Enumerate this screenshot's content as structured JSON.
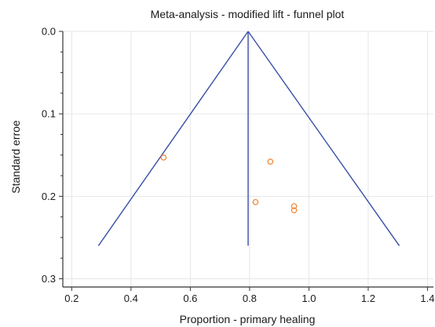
{
  "chart_data": {
    "type": "scatter",
    "title": "Meta-analysis - modified lift - funnel plot",
    "xlabel": "Proportion - primary healing",
    "ylabel": "Standard erroe",
    "xlim": [
      0.17,
      1.42
    ],
    "ylim": [
      0.0,
      0.31
    ],
    "y_inverted": true,
    "grid": true,
    "x_ticks": [
      {
        "value": 0.2,
        "label": "0.2"
      },
      {
        "value": 0.4,
        "label": "0.4"
      },
      {
        "value": 0.6,
        "label": "0.6"
      },
      {
        "value": 0.8,
        "label": "0.8"
      },
      {
        "value": 1.0,
        "label": "1.0"
      },
      {
        "value": 1.2,
        "label": "1.2"
      },
      {
        "value": 1.4,
        "label": "1.4"
      }
    ],
    "y_ticks": [
      {
        "value": 0.0,
        "label": "0.0"
      },
      {
        "value": 0.1,
        "label": "0.1"
      },
      {
        "value": 0.2,
        "label": "0.2"
      },
      {
        "value": 0.3,
        "label": "0.3"
      }
    ],
    "y_minor_ticks": [
      0.025,
      0.05,
      0.075,
      0.125,
      0.15,
      0.175,
      0.225,
      0.25,
      0.275
    ],
    "pooled_estimate": 0.795,
    "funnel": {
      "apex": [
        0.795,
        0.0
      ],
      "base_left": [
        0.29,
        0.26
      ],
      "base_right": [
        1.305,
        0.26
      ]
    },
    "series": [
      {
        "marker": "open-circle",
        "color": "#f08a3c",
        "points": [
          {
            "x": 0.51,
            "y": 0.153
          },
          {
            "x": 0.87,
            "y": 0.158
          },
          {
            "x": 0.82,
            "y": 0.207
          },
          {
            "x": 0.95,
            "y": 0.212
          },
          {
            "x": 0.95,
            "y": 0.217
          }
        ]
      }
    ],
    "colors": {
      "funnel": "#3a4fa8",
      "points": "#f08a3c",
      "grid": "#e6e6e6",
      "axis": "#333333"
    }
  }
}
